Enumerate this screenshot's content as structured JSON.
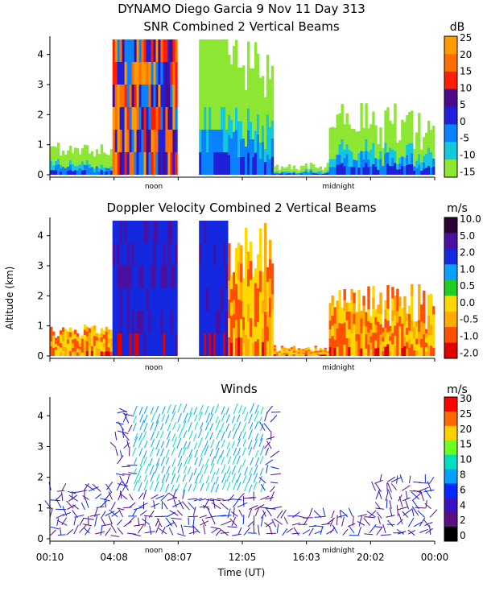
{
  "header": {
    "line1": "DYNAMO Diego Garcia   9 Nov 11 Day 313"
  },
  "ylabel": "Altitude (km)",
  "xlabel": "Time (UT)",
  "x_ticks": [
    "00:10",
    "04:08",
    "08:07",
    "12:05",
    "16:03",
    "20:02",
    "00:00"
  ],
  "markers": {
    "noon": "noon",
    "midnight": "midnight"
  },
  "chart_data": [
    {
      "type": "heatmap",
      "title": "SNR Combined 2 Vertical Beams",
      "units": "dB",
      "ylim": [
        0,
        4.5
      ],
      "y_ticks": [
        "0",
        "1",
        "2",
        "3",
        "4"
      ],
      "colorbar_ticks": [
        "25",
        "20",
        "15",
        "10",
        "5",
        "0",
        "-5",
        "-10",
        "-15"
      ],
      "colorbar_colors": [
        "#ff9a00",
        "#ff6e00",
        "#ff1e00",
        "#4a0a8a",
        "#2020d8",
        "#0a82ff",
        "#14c8dc",
        "#8ce632"
      ],
      "legend_position": "right"
    },
    {
      "type": "heatmap",
      "title": "Doppler Velocity Combined 2 Vertical Beams",
      "units": "m/s",
      "ylim": [
        0,
        4.5
      ],
      "y_ticks": [
        "0",
        "1",
        "2",
        "3",
        "4"
      ],
      "colorbar_ticks": [
        "10.0",
        "5.0",
        "2.0",
        "1.0",
        "0.5",
        "0.0",
        "-0.5",
        "-1.0",
        "-2.0"
      ],
      "colorbar_colors": [
        "#2a0035",
        "#4a10a0",
        "#1428e0",
        "#0aa0ff",
        "#22cc22",
        "#ffd800",
        "#ffaa00",
        "#ff5000",
        "#e00000"
      ],
      "legend_position": "right"
    },
    {
      "type": "scatter",
      "title": "Winds",
      "units": "m/s",
      "ylim": [
        0,
        4.5
      ],
      "y_ticks": [
        "0",
        "1",
        "2",
        "3",
        "4"
      ],
      "colorbar_ticks": [
        "30",
        "25",
        "20",
        "15",
        "10",
        "8",
        "6",
        "4",
        "2",
        "0"
      ],
      "colorbar_colors": [
        "#ff0000",
        "#ff6a00",
        "#ffd000",
        "#6aff22",
        "#00e0c0",
        "#00a0ff",
        "#0028ff",
        "#3a10c0",
        "#5a1080",
        "#000000"
      ],
      "legend_position": "right"
    }
  ]
}
